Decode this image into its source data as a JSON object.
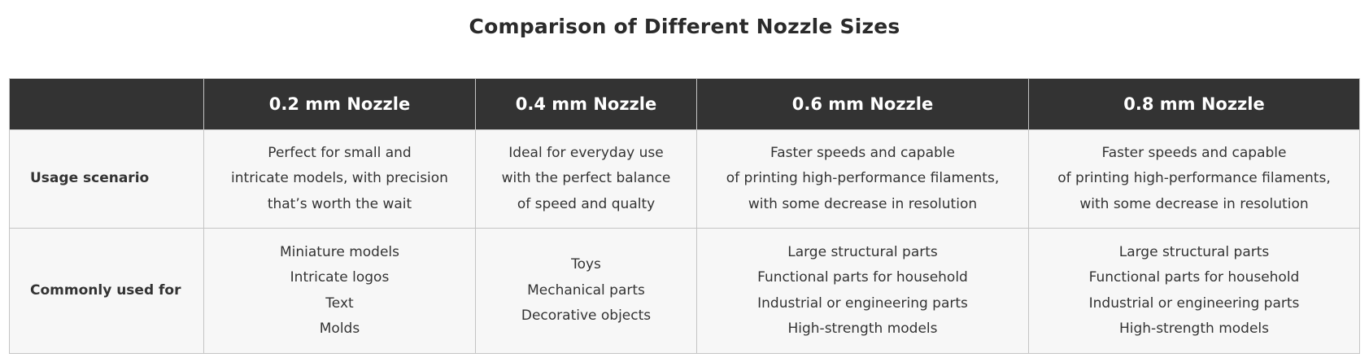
{
  "title": "Comparison of Different Nozzle Sizes",
  "headers": [
    "",
    "0.2 mm Nozzle",
    "0.4 mm Nozzle",
    "0.6 mm Nozzle",
    "0.8 mm Nozzle"
  ],
  "rows": [
    {
      "label": "Usage scenario",
      "cells": [
        [
          "Perfect for small and",
          "intricate models, with precision",
          "that’s worth the wait"
        ],
        [
          "Ideal for everyday use",
          "with the perfect balance",
          "of speed and qualty"
        ],
        [
          "Faster speeds and capable",
          "of printing high-performance filaments,",
          "with some decrease in resolution"
        ],
        [
          "Faster speeds and capable",
          "of printing high-performance filaments,",
          "with some decrease in resolution"
        ]
      ]
    },
    {
      "label": "Commonly used for",
      "cells": [
        [
          "Miniature models",
          "Intricate logos",
          "Text",
          "Molds"
        ],
        [
          "Toys",
          "Mechanical parts",
          "Decorative objects"
        ],
        [
          "Large structural parts",
          "Functional parts for household",
          "Industrial or engineering parts",
          "High-strength models"
        ],
        [
          "Large structural parts",
          "Functional parts for household",
          "Industrial or engineering parts",
          "High-strength models"
        ]
      ]
    }
  ]
}
